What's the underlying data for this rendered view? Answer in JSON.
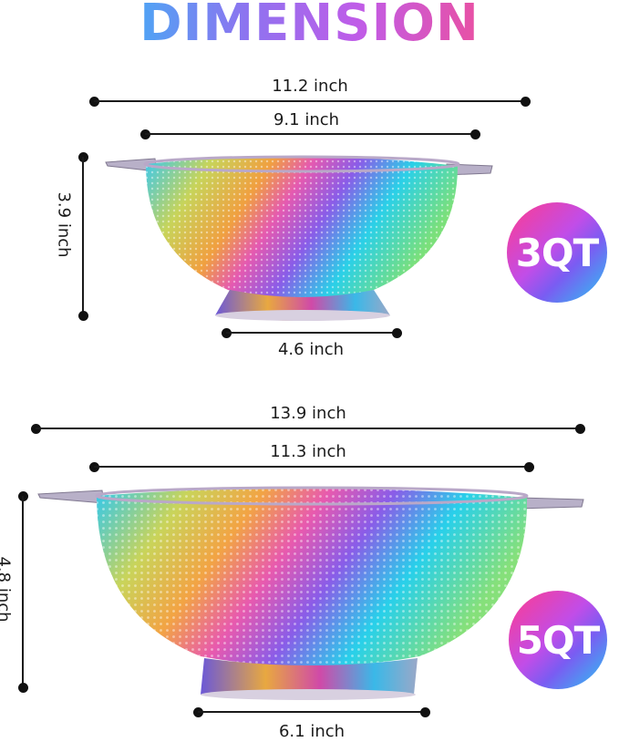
{
  "title": "DIMENSION",
  "small_colander": {
    "size_label": "3QT",
    "width_outer": "11.2 inch",
    "width_inner": "9.1 inch",
    "height": "3.9 inch",
    "base": "4.6 inch"
  },
  "large_colander": {
    "size_label": "5QT",
    "width_outer": "13.9 inch",
    "width_inner": "11.3 inch",
    "height": "4.8 inch",
    "base": "6.1 inch"
  },
  "colors": {
    "title_gradient": [
      "#31c7ef",
      "#8e73f0",
      "#ee4f9a"
    ],
    "badge_gradient": [
      "#ff3b8d",
      "#c14de8",
      "#2ac7f2"
    ],
    "line": "#1a1a1a"
  }
}
